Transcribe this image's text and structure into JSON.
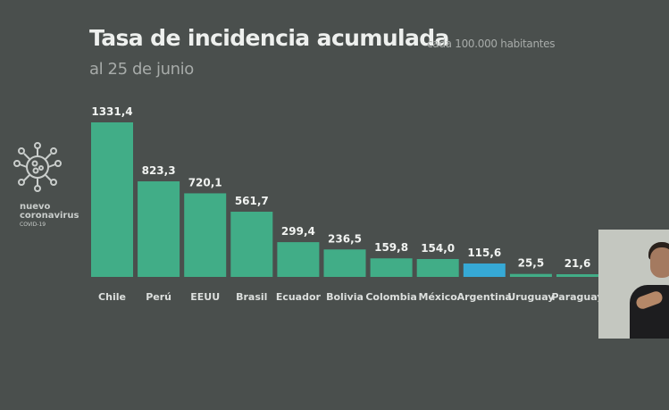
{
  "header": {
    "title": "Tasa de incidencia acumulada",
    "unit": "cada 100.000 habitantes",
    "subtitle": "al 25 de junio"
  },
  "logo": {
    "icon": "coronavirus-icon",
    "line1": "nuevo",
    "line2": "coronavirus",
    "line3": "COVID-19"
  },
  "colors": {
    "background": "#4a4f4d",
    "bar": "#41ad87",
    "highlight": "#36a9d6"
  },
  "interpreter": {
    "description": "sign language interpreter video inset"
  },
  "chart_data": {
    "type": "bar",
    "title": "Tasa de incidencia acumulada",
    "subtitle": "al 25 de junio",
    "ylabel": "cada 100.000 habitantes",
    "xlabel": "",
    "categories": [
      "Chile",
      "Perú",
      "EEUU",
      "Brasil",
      "Ecuador",
      "Bolivia",
      "Colombia",
      "México",
      "Argentina",
      "Uruguay",
      "Paraguay"
    ],
    "values": [
      1331.4,
      823.3,
      720.1,
      561.7,
      299.4,
      236.5,
      159.8,
      154.0,
      115.6,
      25.5,
      21.6
    ],
    "value_labels": [
      "1331,4",
      "823,3",
      "720,1",
      "561,7",
      "299,4",
      "236,5",
      "159,8",
      "154,0",
      "115,6",
      "25,5",
      "21,6"
    ],
    "highlight": "Argentina",
    "ylim": [
      0,
      1331.4
    ],
    "grid": false,
    "legend": "none"
  }
}
